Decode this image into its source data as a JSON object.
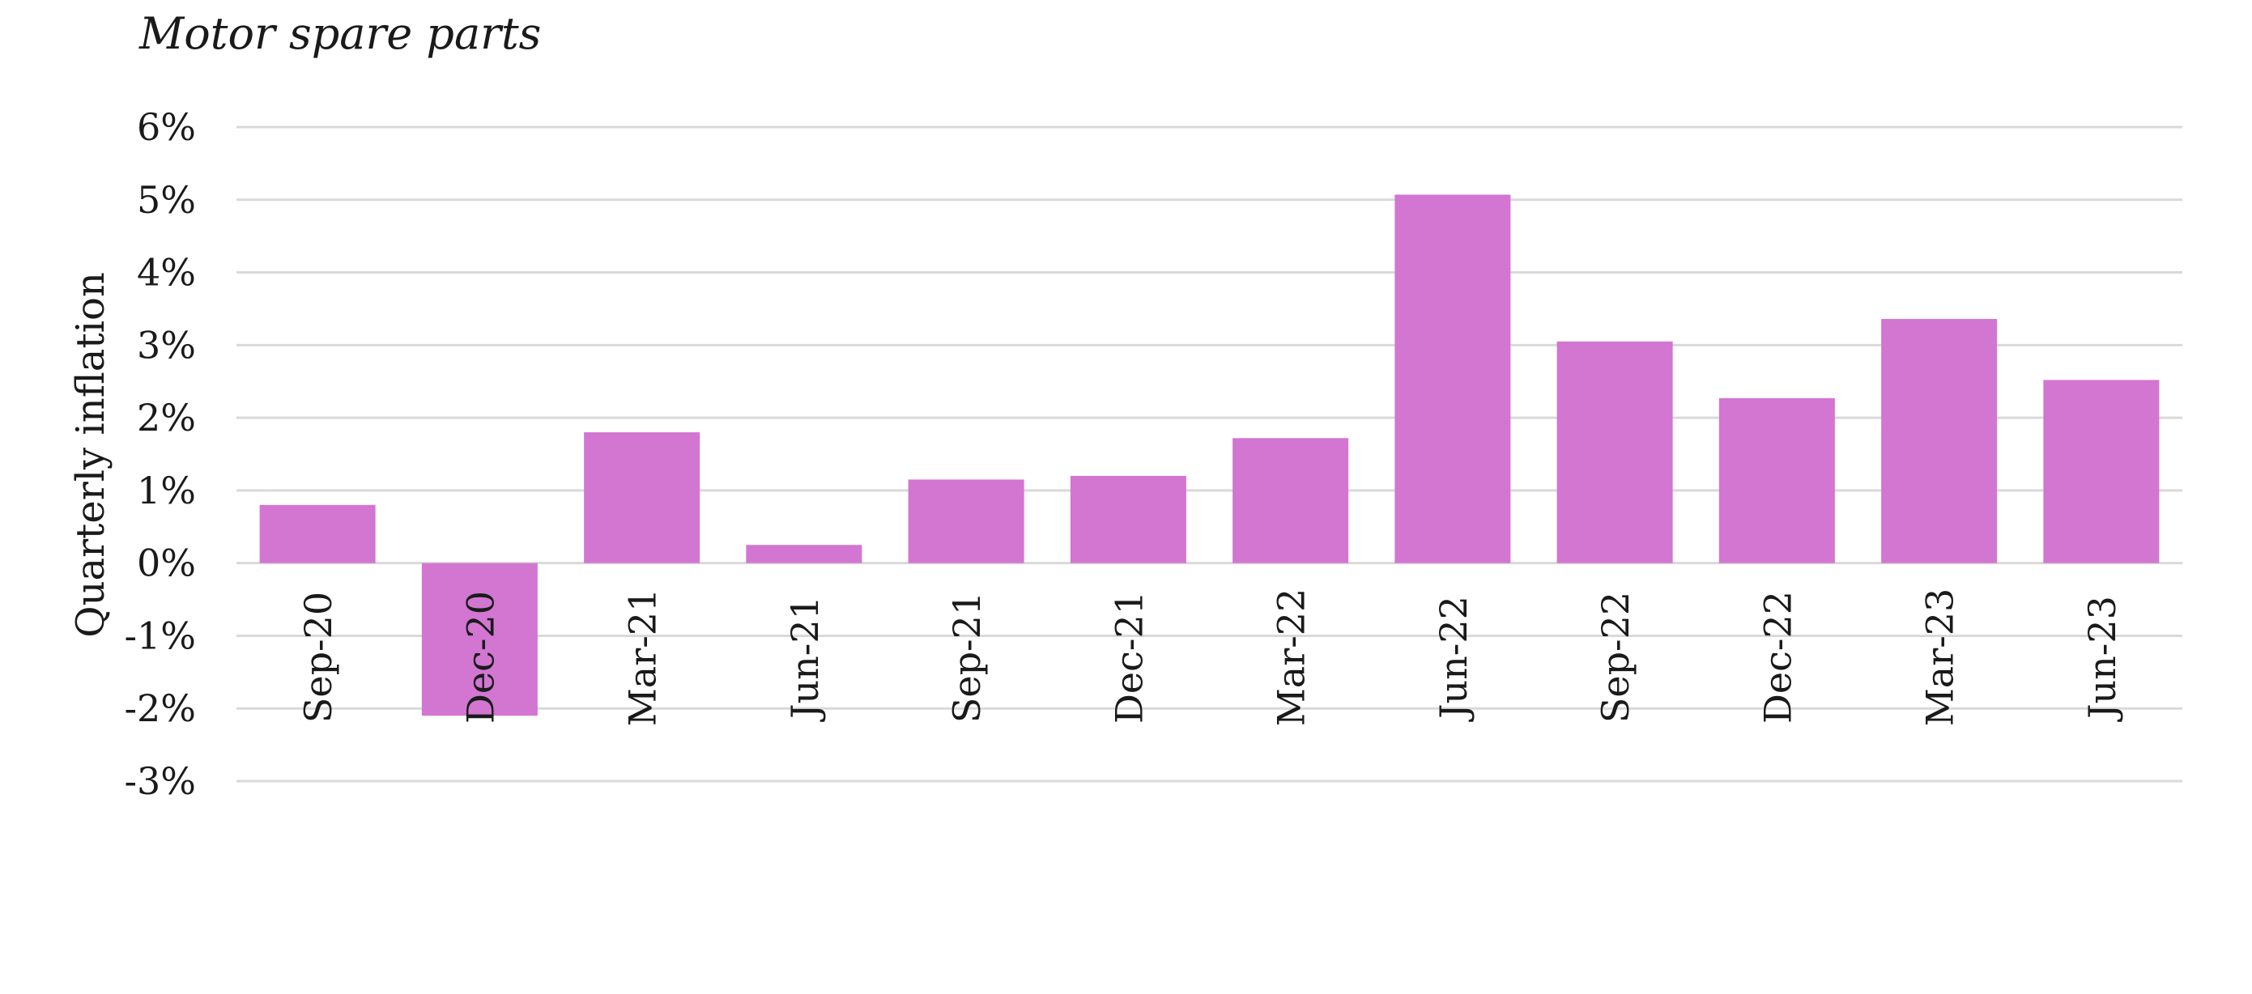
{
  "chart_data": {
    "type": "bar",
    "title": "Motor spare parts",
    "ylabel": "Quarterly inflation",
    "xlabel": "",
    "categories": [
      "Sep-20",
      "Dec-20",
      "Mar-21",
      "Jun-21",
      "Sep-21",
      "Dec-21",
      "Mar-22",
      "Jun-22",
      "Sep-22",
      "Dec-22",
      "Mar-23",
      "Jun-23"
    ],
    "values": [
      0.8,
      -2.1,
      1.8,
      0.25,
      1.15,
      1.2,
      1.72,
      5.07,
      3.05,
      2.27,
      3.36,
      2.52
    ],
    "ylim": [
      -3,
      6
    ],
    "yticks": [
      6,
      5,
      4,
      3,
      2,
      1,
      0,
      -1,
      -2,
      -3
    ],
    "ytick_labels": [
      "6%",
      "5%",
      "4%",
      "3%",
      "2%",
      "1%",
      "0%",
      "-1%",
      "-2%",
      "-3%"
    ],
    "bar_color": "#d276d2",
    "grid": true,
    "legend": false
  }
}
